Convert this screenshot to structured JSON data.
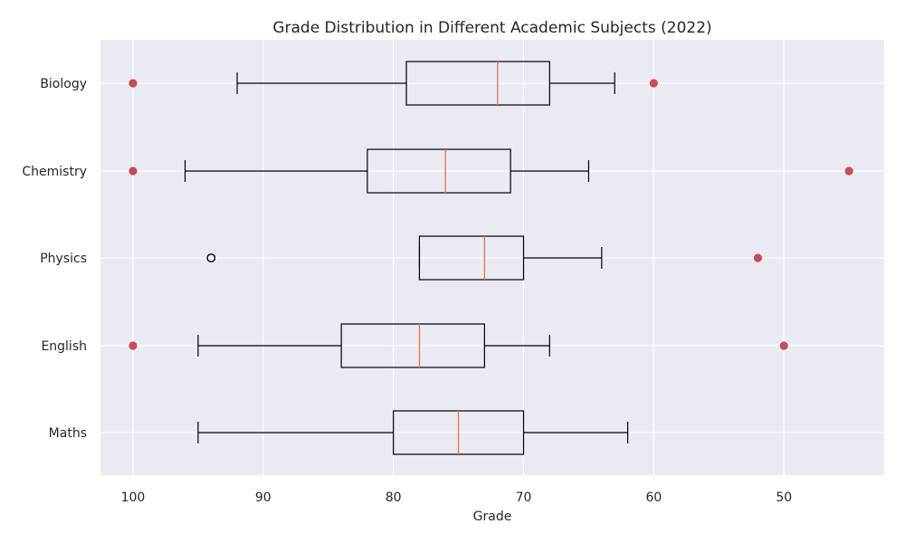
{
  "chart_data": {
    "type": "boxplot",
    "title": "Grade Distribution in Different Academic Subjects (2022)",
    "xlabel": "Grade",
    "ylabel": "",
    "x_axis_inverted": true,
    "xlim": [
      102.5,
      42.3
    ],
    "xticks": [
      100,
      90,
      80,
      70,
      60,
      50
    ],
    "orientation": "horizontal",
    "grid": true,
    "colors": {
      "plot_background": "#EAEAF2",
      "grid": "#FFFFFF",
      "box_edge": "#000000",
      "median": "#E07B54",
      "outlier_marker": "#C44E52"
    },
    "categories": [
      "Biology",
      "Chemistry",
      "Physics",
      "English",
      "Maths"
    ],
    "series": [
      {
        "category": "Biology",
        "whisker_low": 63,
        "q1": 68,
        "median": 72,
        "q3": 79,
        "whisker_high": 92,
        "outliers": [
          100,
          60
        ]
      },
      {
        "category": "Chemistry",
        "whisker_low": 65,
        "q1": 71,
        "median": 76,
        "q3": 82,
        "whisker_high": 96,
        "outliers": [
          100,
          45
        ]
      },
      {
        "category": "Physics",
        "whisker_low": 64,
        "q1": 70,
        "median": 73,
        "q3": 78,
        "whisker_high": 78,
        "outliers": [
          52
        ],
        "fliers": [
          94
        ]
      },
      {
        "category": "English",
        "whisker_low": 68,
        "q1": 73,
        "median": 78,
        "q3": 84,
        "whisker_high": 95,
        "outliers": [
          100,
          50
        ]
      },
      {
        "category": "Maths",
        "whisker_low": 62,
        "q1": 70,
        "median": 75,
        "q3": 80,
        "whisker_high": 95,
        "outliers": []
      }
    ]
  }
}
